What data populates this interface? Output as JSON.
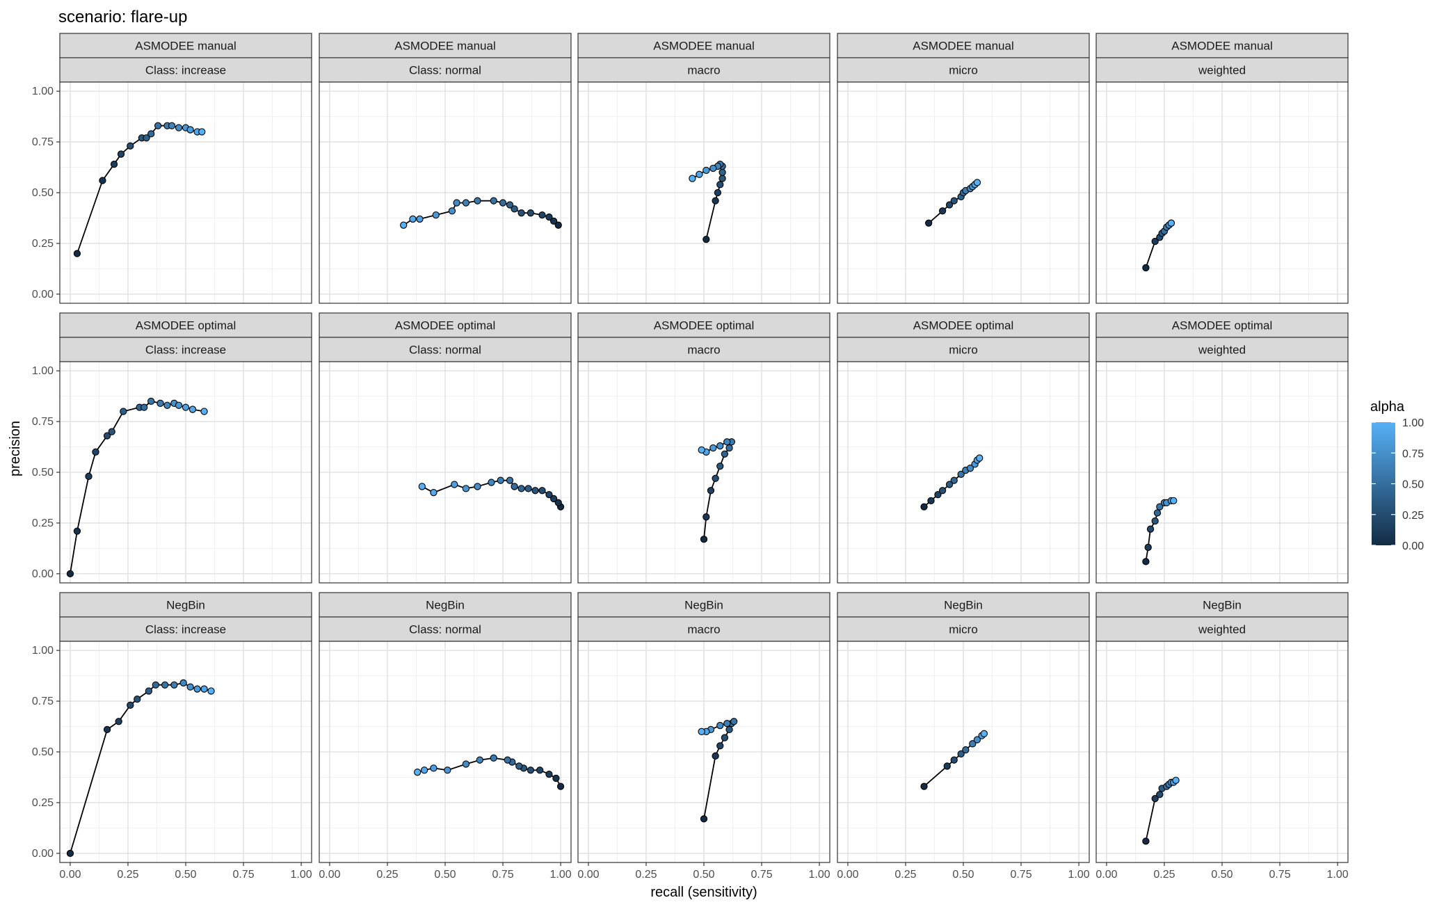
{
  "chart_data": {
    "type": "scatter",
    "connected": true,
    "title": "scenario:  flare-up",
    "xlabel": "recall (sensitivity)",
    "ylabel": "precision",
    "xlim": [
      0,
      1
    ],
    "ylim": [
      0,
      1
    ],
    "x_ticks": [
      "0.00",
      "0.25",
      "0.50",
      "0.75",
      "1.00"
    ],
    "y_ticks": [
      "0.00",
      "0.25",
      "0.50",
      "0.75",
      "1.00"
    ],
    "grid": true,
    "facet_rows": [
      "ASMODEE manual",
      "ASMODEE optimal",
      "NegBin"
    ],
    "facet_cols": [
      "Class: increase",
      "Class: normal",
      "macro",
      "micro",
      "weighted"
    ],
    "legend": {
      "title": "alpha",
      "position": "right",
      "ticks": [
        "0.00",
        "0.25",
        "0.50",
        "0.75",
        "1.00"
      ],
      "color_low": "#132B43",
      "color_high": "#56B1F7"
    },
    "panels": [
      {
        "row": 0,
        "col": 0,
        "points": [
          [
            0.03,
            0.2
          ],
          [
            0.14,
            0.56
          ],
          [
            0.19,
            0.64
          ],
          [
            0.22,
            0.69
          ],
          [
            0.26,
            0.73
          ],
          [
            0.31,
            0.77
          ],
          [
            0.33,
            0.77
          ],
          [
            0.35,
            0.79
          ],
          [
            0.38,
            0.83
          ],
          [
            0.42,
            0.83
          ],
          [
            0.44,
            0.83
          ],
          [
            0.47,
            0.82
          ],
          [
            0.5,
            0.82
          ],
          [
            0.52,
            0.81
          ],
          [
            0.55,
            0.8
          ],
          [
            0.57,
            0.8
          ]
        ]
      },
      {
        "row": 0,
        "col": 1,
        "points": [
          [
            0.99,
            0.34
          ],
          [
            0.97,
            0.36
          ],
          [
            0.95,
            0.38
          ],
          [
            0.92,
            0.39
          ],
          [
            0.87,
            0.4
          ],
          [
            0.83,
            0.4
          ],
          [
            0.8,
            0.42
          ],
          [
            0.78,
            0.44
          ],
          [
            0.75,
            0.45
          ],
          [
            0.71,
            0.46
          ],
          [
            0.64,
            0.46
          ],
          [
            0.59,
            0.45
          ],
          [
            0.55,
            0.45
          ],
          [
            0.53,
            0.41
          ],
          [
            0.46,
            0.39
          ],
          [
            0.39,
            0.37
          ],
          [
            0.36,
            0.37
          ],
          [
            0.32,
            0.34
          ]
        ]
      },
      {
        "row": 0,
        "col": 2,
        "points": [
          [
            0.51,
            0.27
          ],
          [
            0.55,
            0.46
          ],
          [
            0.56,
            0.5
          ],
          [
            0.57,
            0.54
          ],
          [
            0.58,
            0.57
          ],
          [
            0.58,
            0.6
          ],
          [
            0.58,
            0.63
          ],
          [
            0.57,
            0.64
          ],
          [
            0.56,
            0.63
          ],
          [
            0.54,
            0.62
          ],
          [
            0.51,
            0.61
          ],
          [
            0.48,
            0.59
          ],
          [
            0.45,
            0.57
          ]
        ]
      },
      {
        "row": 0,
        "col": 3,
        "points": [
          [
            0.35,
            0.35
          ],
          [
            0.41,
            0.41
          ],
          [
            0.44,
            0.44
          ],
          [
            0.46,
            0.46
          ],
          [
            0.49,
            0.48
          ],
          [
            0.5,
            0.5
          ],
          [
            0.51,
            0.51
          ],
          [
            0.53,
            0.52
          ],
          [
            0.54,
            0.53
          ],
          [
            0.55,
            0.54
          ],
          [
            0.56,
            0.55
          ]
        ]
      },
      {
        "row": 0,
        "col": 4,
        "points": [
          [
            0.17,
            0.13
          ],
          [
            0.21,
            0.26
          ],
          [
            0.23,
            0.28
          ],
          [
            0.24,
            0.3
          ],
          [
            0.25,
            0.31
          ],
          [
            0.26,
            0.33
          ],
          [
            0.27,
            0.34
          ],
          [
            0.28,
            0.35
          ],
          [
            0.28,
            0.35
          ]
        ]
      },
      {
        "row": 1,
        "col": 0,
        "points": [
          [
            0.0,
            0.0
          ],
          [
            0.03,
            0.21
          ],
          [
            0.08,
            0.48
          ],
          [
            0.11,
            0.6
          ],
          [
            0.16,
            0.68
          ],
          [
            0.18,
            0.7
          ],
          [
            0.23,
            0.8
          ],
          [
            0.3,
            0.82
          ],
          [
            0.32,
            0.82
          ],
          [
            0.35,
            0.85
          ],
          [
            0.39,
            0.84
          ],
          [
            0.42,
            0.83
          ],
          [
            0.45,
            0.84
          ],
          [
            0.47,
            0.83
          ],
          [
            0.5,
            0.82
          ],
          [
            0.53,
            0.81
          ],
          [
            0.58,
            0.8
          ]
        ]
      },
      {
        "row": 1,
        "col": 1,
        "points": [
          [
            1.0,
            0.33
          ],
          [
            0.99,
            0.35
          ],
          [
            0.97,
            0.37
          ],
          [
            0.95,
            0.39
          ],
          [
            0.92,
            0.41
          ],
          [
            0.89,
            0.41
          ],
          [
            0.86,
            0.42
          ],
          [
            0.83,
            0.42
          ],
          [
            0.8,
            0.43
          ],
          [
            0.78,
            0.46
          ],
          [
            0.74,
            0.46
          ],
          [
            0.7,
            0.45
          ],
          [
            0.64,
            0.43
          ],
          [
            0.59,
            0.42
          ],
          [
            0.54,
            0.44
          ],
          [
            0.45,
            0.4
          ],
          [
            0.4,
            0.43
          ]
        ]
      },
      {
        "row": 1,
        "col": 2,
        "points": [
          [
            0.5,
            0.17
          ],
          [
            0.51,
            0.28
          ],
          [
            0.53,
            0.41
          ],
          [
            0.55,
            0.47
          ],
          [
            0.57,
            0.53
          ],
          [
            0.59,
            0.59
          ],
          [
            0.61,
            0.62
          ],
          [
            0.62,
            0.65
          ],
          [
            0.6,
            0.65
          ],
          [
            0.57,
            0.63
          ],
          [
            0.54,
            0.62
          ],
          [
            0.51,
            0.6
          ],
          [
            0.49,
            0.61
          ]
        ]
      },
      {
        "row": 1,
        "col": 3,
        "points": [
          [
            0.33,
            0.33
          ],
          [
            0.36,
            0.36
          ],
          [
            0.39,
            0.39
          ],
          [
            0.41,
            0.41
          ],
          [
            0.44,
            0.44
          ],
          [
            0.46,
            0.46
          ],
          [
            0.49,
            0.49
          ],
          [
            0.51,
            0.51
          ],
          [
            0.53,
            0.52
          ],
          [
            0.55,
            0.54
          ],
          [
            0.56,
            0.56
          ],
          [
            0.57,
            0.57
          ]
        ]
      },
      {
        "row": 1,
        "col": 4,
        "points": [
          [
            0.17,
            0.06
          ],
          [
            0.18,
            0.13
          ],
          [
            0.19,
            0.22
          ],
          [
            0.21,
            0.26
          ],
          [
            0.22,
            0.3
          ],
          [
            0.23,
            0.33
          ],
          [
            0.25,
            0.35
          ],
          [
            0.26,
            0.35
          ],
          [
            0.28,
            0.36
          ],
          [
            0.29,
            0.36
          ]
        ]
      },
      {
        "row": 2,
        "col": 0,
        "points": [
          [
            0.0,
            0.0
          ],
          [
            0.16,
            0.61
          ],
          [
            0.21,
            0.65
          ],
          [
            0.26,
            0.73
          ],
          [
            0.29,
            0.76
          ],
          [
            0.34,
            0.8
          ],
          [
            0.37,
            0.83
          ],
          [
            0.41,
            0.83
          ],
          [
            0.45,
            0.83
          ],
          [
            0.49,
            0.84
          ],
          [
            0.52,
            0.82
          ],
          [
            0.55,
            0.81
          ],
          [
            0.58,
            0.81
          ],
          [
            0.61,
            0.8
          ]
        ]
      },
      {
        "row": 2,
        "col": 1,
        "points": [
          [
            1.0,
            0.33
          ],
          [
            0.98,
            0.37
          ],
          [
            0.95,
            0.39
          ],
          [
            0.91,
            0.41
          ],
          [
            0.87,
            0.41
          ],
          [
            0.84,
            0.42
          ],
          [
            0.82,
            0.43
          ],
          [
            0.79,
            0.45
          ],
          [
            0.77,
            0.46
          ],
          [
            0.71,
            0.47
          ],
          [
            0.65,
            0.46
          ],
          [
            0.59,
            0.44
          ],
          [
            0.51,
            0.41
          ],
          [
            0.45,
            0.42
          ],
          [
            0.41,
            0.41
          ],
          [
            0.38,
            0.4
          ]
        ]
      },
      {
        "row": 2,
        "col": 2,
        "points": [
          [
            0.5,
            0.17
          ],
          [
            0.55,
            0.48
          ],
          [
            0.57,
            0.53
          ],
          [
            0.59,
            0.57
          ],
          [
            0.61,
            0.61
          ],
          [
            0.62,
            0.64
          ],
          [
            0.63,
            0.65
          ],
          [
            0.6,
            0.64
          ],
          [
            0.57,
            0.63
          ],
          [
            0.53,
            0.61
          ],
          [
            0.51,
            0.6
          ],
          [
            0.49,
            0.6
          ]
        ]
      },
      {
        "row": 2,
        "col": 3,
        "points": [
          [
            0.33,
            0.33
          ],
          [
            0.43,
            0.43
          ],
          [
            0.46,
            0.46
          ],
          [
            0.49,
            0.49
          ],
          [
            0.51,
            0.51
          ],
          [
            0.54,
            0.54
          ],
          [
            0.56,
            0.56
          ],
          [
            0.58,
            0.58
          ],
          [
            0.59,
            0.59
          ]
        ]
      },
      {
        "row": 2,
        "col": 4,
        "points": [
          [
            0.17,
            0.06
          ],
          [
            0.21,
            0.27
          ],
          [
            0.23,
            0.29
          ],
          [
            0.24,
            0.32
          ],
          [
            0.26,
            0.33
          ],
          [
            0.27,
            0.34
          ],
          [
            0.28,
            0.35
          ],
          [
            0.29,
            0.35
          ],
          [
            0.3,
            0.36
          ]
        ]
      }
    ]
  }
}
